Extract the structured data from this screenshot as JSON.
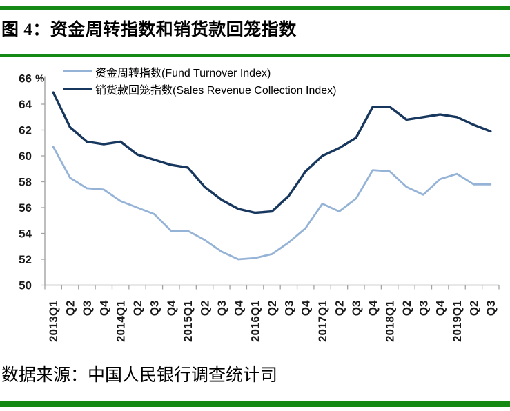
{
  "page": {
    "title": "图 4：资金周转指数和销货款回笼指数",
    "source": "数据来源：中国人民银行调查统计司",
    "accent_green": "#148a14",
    "axis_color": "#a3a3a3",
    "tick_label_color": "#1a1a1a"
  },
  "chart_data": {
    "type": "line",
    "title": "",
    "xlabel": "",
    "ylabel": "%",
    "ylim": [
      50,
      66
    ],
    "ytick_step": 2,
    "grid": false,
    "legend_position": "top-left",
    "categories": [
      "2013Q1",
      "Q2",
      "Q3",
      "Q4",
      "2014Q1",
      "Q2",
      "Q3",
      "Q4",
      "2015Q1",
      "Q2",
      "Q3",
      "Q4",
      "2016Q1",
      "Q2",
      "Q3",
      "Q4",
      "2017Q1",
      "Q2",
      "Q3",
      "Q4",
      "2018Q1",
      "Q2",
      "Q3",
      "Q4",
      "2019Q1",
      "Q2",
      "Q3"
    ],
    "series": [
      {
        "id": "fund-turnover-index",
        "name": "资金周转指数(Fund Turnover Index)",
        "color": "#95B3D7",
        "stroke_width": 2.8,
        "values": [
          60.7,
          58.3,
          57.5,
          57.4,
          56.5,
          56.0,
          55.5,
          54.2,
          54.2,
          53.5,
          52.6,
          52.0,
          52.1,
          52.4,
          53.3,
          54.4,
          56.3,
          55.7,
          56.7,
          58.9,
          58.8,
          57.6,
          57.0,
          58.2,
          58.6,
          57.8,
          57.8
        ]
      },
      {
        "id": "sales-revenue-collection-index",
        "name": "销货款回笼指数(Sales Revenue Collection Index)",
        "color": "#17375E",
        "stroke_width": 3.4,
        "values": [
          64.9,
          62.2,
          61.1,
          60.9,
          61.1,
          60.1,
          59.7,
          59.3,
          59.1,
          57.6,
          56.6,
          55.9,
          55.6,
          55.7,
          56.9,
          58.8,
          60.0,
          60.6,
          61.4,
          63.8,
          63.8,
          62.8,
          63.0,
          63.2,
          63.0,
          62.4,
          61.9
        ]
      }
    ]
  }
}
